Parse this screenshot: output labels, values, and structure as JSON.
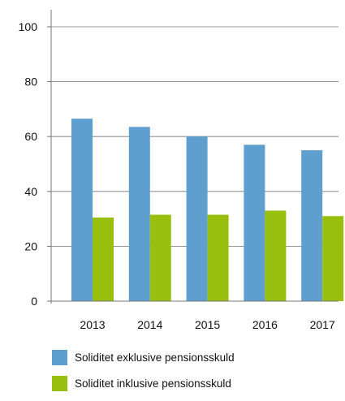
{
  "chart_data": {
    "type": "bar",
    "title": "",
    "xlabel": "",
    "ylabel": "",
    "categories": [
      "2013",
      "2014",
      "2015",
      "2016",
      "2017"
    ],
    "series": [
      {
        "name": "Soliditet exklusive pensionsskuld",
        "color": "#5e9fd0",
        "values": [
          66.5,
          63.5,
          60.0,
          57.0,
          55.0
        ]
      },
      {
        "name": "Soliditet inklusive pensionsskuld",
        "color": "#99bf0e",
        "values": [
          30.5,
          31.5,
          31.5,
          33.0,
          31.0
        ]
      }
    ],
    "ylim": [
      0,
      100
    ],
    "yticks": [
      0,
      20,
      40,
      60,
      80,
      100
    ],
    "grid": true,
    "legend_position": "bottom"
  }
}
